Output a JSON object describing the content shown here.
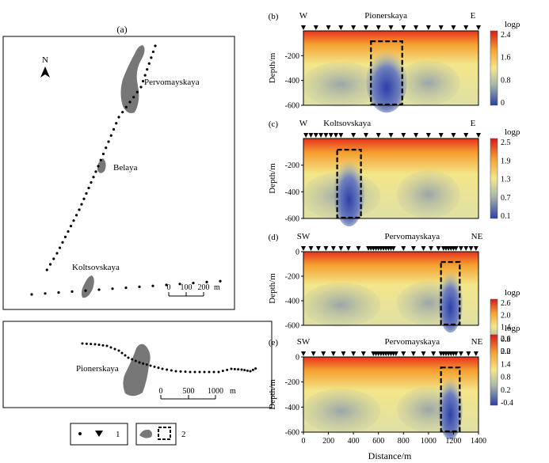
{
  "figure_a": {
    "label": "(a)",
    "north": "N",
    "sites": {
      "pervomayskaya": "Pervomayskaya",
      "belaya": "Belaya",
      "koltsovskaya": "Koltsovskaya",
      "pionerskaya": "Pionerskaya"
    },
    "scale_top": {
      "ticks": [
        "0",
        "100",
        "200"
      ],
      "unit": "m"
    },
    "scale_bottom": {
      "ticks": [
        "0",
        "500",
        "1000"
      ],
      "unit": "m"
    }
  },
  "legend": {
    "item1_label": "1",
    "item2_label": "2"
  },
  "common": {
    "ylabel": "Depth/m",
    "xlabel": "Distance/m",
    "colorbar_title": "logρ",
    "x_ticks": [
      "0",
      "200",
      "400",
      "600",
      "800",
      "1000",
      "1200",
      "1400"
    ],
    "y_ticks": [
      "0",
      "-200",
      "-400",
      "-600"
    ]
  },
  "panels": [
    {
      "id": "b",
      "label": "(b)",
      "left": "W",
      "right": "E",
      "site": "Pionerskaya",
      "colorbar_ticks": [
        "2.4",
        "1.6",
        "0.8",
        "0"
      ],
      "y_ticks": [
        "-200",
        "-400",
        "-600"
      ]
    },
    {
      "id": "c",
      "label": "(c)",
      "left": "W",
      "right": "E",
      "site": "Koltsovskaya",
      "colorbar_ticks": [
        "2.5",
        "1.9",
        "1.3",
        "0.7",
        "0.1"
      ],
      "y_ticks": [
        "-200",
        "-400",
        "-600"
      ]
    },
    {
      "id": "d",
      "label": "(d)",
      "left": "SW",
      "right": "NE",
      "site": "Pervomayskaya",
      "colorbar_ticks": [
        "2.6",
        "2.0",
        "1.4",
        "0.8",
        "0.2"
      ],
      "y_ticks": [
        "0",
        "-200",
        "-400",
        "-600"
      ]
    },
    {
      "id": "e",
      "label": "(e)",
      "left": "SW",
      "right": "NE",
      "site": "Pervomayskaya",
      "colorbar_ticks": [
        "2.6",
        "2.0",
        "1.4",
        "0.8",
        "0.2",
        "-0.4"
      ],
      "y_ticks": [
        "0",
        "-200",
        "-400",
        "-600"
      ]
    }
  ],
  "colors": {
    "high": "#d7191c",
    "mid_high": "#f4a030",
    "mid": "#f2e88a",
    "mid_low": "#a9b9a8",
    "low": "#2c3fa8",
    "site_fill": "#777777"
  }
}
